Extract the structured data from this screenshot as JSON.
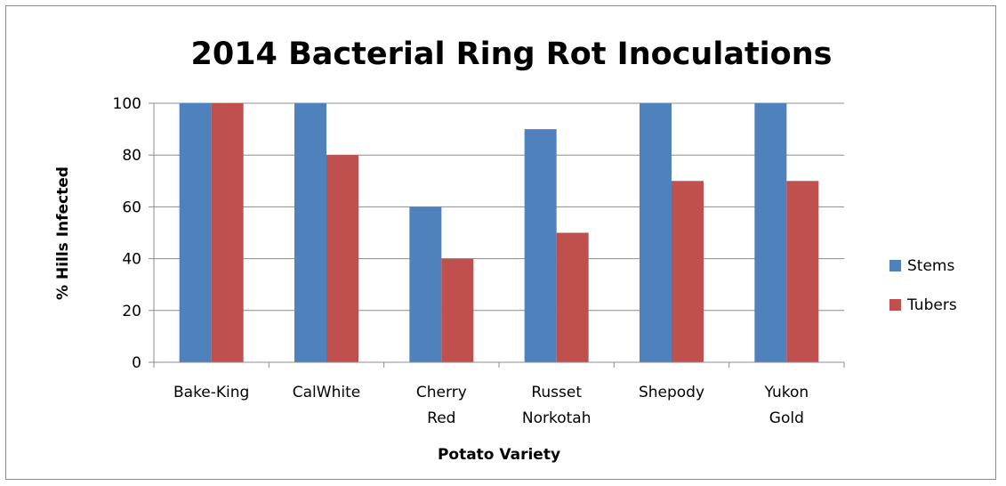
{
  "chart_data": {
    "type": "bar",
    "title": "2014 Bacterial Ring Rot Inoculations",
    "xlabel": "Potato Variety",
    "ylabel": "% Hills Infected",
    "categories": [
      [
        "Bake-King"
      ],
      [
        "CalWhite"
      ],
      [
        "Cherry",
        "Red"
      ],
      [
        "Russet",
        "Norkotah"
      ],
      [
        "Shepody"
      ],
      [
        "Yukon",
        "Gold"
      ]
    ],
    "series": [
      {
        "name": "Stems",
        "color": "#4F81BD",
        "values": [
          100,
          100,
          60,
          90,
          100,
          100
        ]
      },
      {
        "name": "Tubers",
        "color": "#C0504D",
        "values": [
          100,
          80,
          40,
          50,
          70,
          70
        ]
      }
    ],
    "ylim": [
      0,
      100
    ],
    "yticks": [
      0,
      20,
      40,
      60,
      80,
      100
    ],
    "grid": true,
    "legend": "right"
  }
}
